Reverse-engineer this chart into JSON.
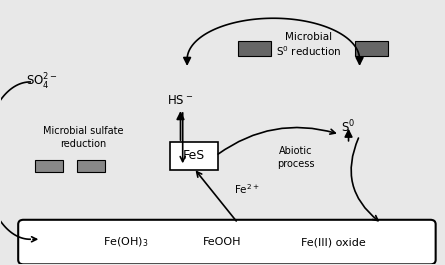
{
  "bg_color": "#e8e8e8",
  "figure_bg": "#e8e8e8",
  "gray_rect": "#888888",
  "dark_gray": "#666666",
  "xlim": [
    0,
    10
  ],
  "ylim": [
    0,
    7
  ],
  "so4_text": "SO$_4^{2-}$",
  "hs_text": "HS$^-$",
  "s0_text": "S$^0$",
  "fe2_text": "Fe$^{2+}$",
  "fes_text": "FeS",
  "micro_sulf_1": "Microbial sulfate",
  "micro_sulf_2": "reduction",
  "abiotic_1": "Abiotic",
  "abiotic_2": "process",
  "micro_s0_1": "Microbial",
  "micro_s0_2": "S$^0$ reduction",
  "bar_label_1": "Fe(OH)$_3$",
  "bar_label_2": "FeOOH",
  "bar_label_3": "Fe(III) oxide"
}
